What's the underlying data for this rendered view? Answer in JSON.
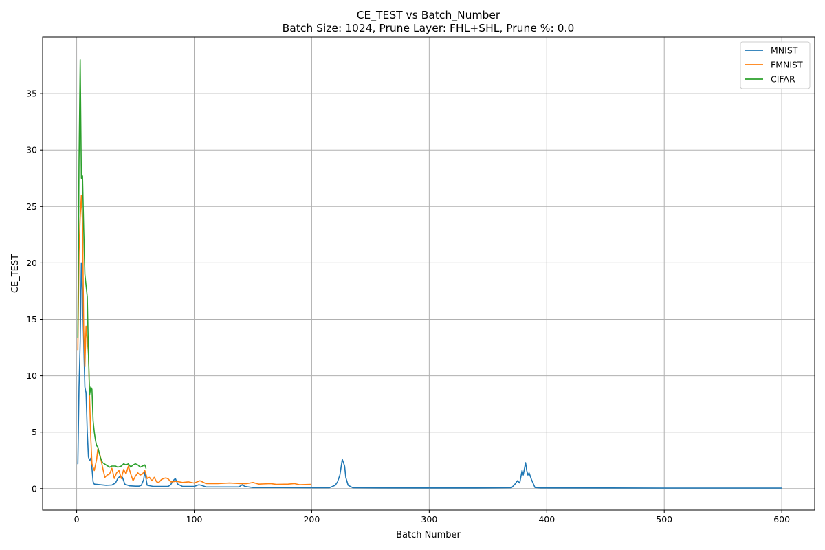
{
  "chart_data": {
    "type": "line",
    "title": "CE_TEST vs Batch_Number",
    "subtitle": "Batch Size: 1024, Prune Layer: FHL+SHL, Prune %: 0.0",
    "xlabel": "Batch Number",
    "ylabel": "CE_TEST",
    "xlim": [
      -29,
      628
    ],
    "ylim": [
      -1.9,
      40
    ],
    "xticks": [
      0,
      100,
      200,
      300,
      400,
      500,
      600
    ],
    "yticks": [
      0,
      5,
      10,
      15,
      20,
      25,
      30,
      35
    ],
    "grid": true,
    "legend_position": "top-right",
    "series": [
      {
        "name": "MNIST",
        "color": "#1f77b4",
        "points": [
          [
            1,
            2.2
          ],
          [
            2,
            9
          ],
          [
            3,
            13
          ],
          [
            4,
            20
          ],
          [
            5,
            17
          ],
          [
            6,
            13
          ],
          [
            7,
            9
          ],
          [
            8,
            8.5
          ],
          [
            9,
            5
          ],
          [
            10,
            2.8
          ],
          [
            11,
            2.5
          ],
          [
            12,
            2.7
          ],
          [
            13,
            1.8
          ],
          [
            14,
            0.6
          ],
          [
            15,
            0.4
          ],
          [
            20,
            0.35
          ],
          [
            25,
            0.3
          ],
          [
            30,
            0.32
          ],
          [
            33,
            0.5
          ],
          [
            35,
            0.9
          ],
          [
            37,
            1.1
          ],
          [
            39,
            1.0
          ],
          [
            41,
            0.4
          ],
          [
            45,
            0.25
          ],
          [
            50,
            0.22
          ],
          [
            53,
            0.22
          ],
          [
            55,
            0.3
          ],
          [
            57,
            0.8
          ],
          [
            58,
            1.5
          ],
          [
            59,
            0.9
          ],
          [
            60,
            0.3
          ],
          [
            65,
            0.2
          ],
          [
            70,
            0.2
          ],
          [
            78,
            0.2
          ],
          [
            80,
            0.35
          ],
          [
            82,
            0.7
          ],
          [
            84,
            0.9
          ],
          [
            86,
            0.4
          ],
          [
            90,
            0.2
          ],
          [
            100,
            0.2
          ],
          [
            104,
            0.35
          ],
          [
            106,
            0.3
          ],
          [
            110,
            0.15
          ],
          [
            120,
            0.15
          ],
          [
            130,
            0.15
          ],
          [
            138,
            0.15
          ],
          [
            141,
            0.35
          ],
          [
            143,
            0.2
          ],
          [
            150,
            0.1
          ],
          [
            175,
            0.1
          ],
          [
            200,
            0.08
          ],
          [
            215,
            0.08
          ],
          [
            220,
            0.3
          ],
          [
            222,
            0.6
          ],
          [
            224,
            1.2
          ],
          [
            226,
            2.6
          ],
          [
            228,
            2.0
          ],
          [
            229,
            1.0
          ],
          [
            231,
            0.3
          ],
          [
            235,
            0.08
          ],
          [
            260,
            0.07
          ],
          [
            300,
            0.06
          ],
          [
            340,
            0.06
          ],
          [
            370,
            0.08
          ],
          [
            373,
            0.4
          ],
          [
            375,
            0.7
          ],
          [
            377,
            0.5
          ],
          [
            379,
            1.6
          ],
          [
            380,
            1.2
          ],
          [
            382,
            2.3
          ],
          [
            383,
            1.6
          ],
          [
            384,
            1.2
          ],
          [
            385,
            1.4
          ],
          [
            387,
            0.8
          ],
          [
            390,
            0.1
          ],
          [
            395,
            0.07
          ],
          [
            450,
            0.06
          ],
          [
            500,
            0.05
          ],
          [
            550,
            0.05
          ],
          [
            600,
            0.05
          ]
        ]
      },
      {
        "name": "FMNIST",
        "color": "#ff7f0e",
        "points": [
          [
            1,
            12.3
          ],
          [
            2,
            21
          ],
          [
            3,
            24
          ],
          [
            4,
            26
          ],
          [
            5,
            23.5
          ],
          [
            6,
            14
          ],
          [
            7,
            10.8
          ],
          [
            8,
            14.4
          ],
          [
            9,
            13.2
          ],
          [
            10,
            12
          ],
          [
            11,
            8
          ],
          [
            12,
            4.5
          ],
          [
            13,
            2.2
          ],
          [
            15,
            1.6
          ],
          [
            17,
            2.6
          ],
          [
            18,
            3.5
          ],
          [
            20,
            2.9
          ],
          [
            22,
            1.9
          ],
          [
            24,
            1.0
          ],
          [
            26,
            1.2
          ],
          [
            28,
            1.3
          ],
          [
            30,
            1.8
          ],
          [
            32,
            0.9
          ],
          [
            34,
            1.4
          ],
          [
            36,
            1.6
          ],
          [
            38,
            0.9
          ],
          [
            40,
            1.7
          ],
          [
            42,
            1.3
          ],
          [
            44,
            2.0
          ],
          [
            46,
            1.3
          ],
          [
            48,
            0.7
          ],
          [
            50,
            1.1
          ],
          [
            52,
            1.4
          ],
          [
            54,
            1.2
          ],
          [
            56,
            1.3
          ],
          [
            58,
            1.6
          ],
          [
            60,
            0.9
          ],
          [
            62,
            1.0
          ],
          [
            64,
            0.7
          ],
          [
            66,
            1.0
          ],
          [
            68,
            0.6
          ],
          [
            70,
            0.55
          ],
          [
            72,
            0.8
          ],
          [
            74,
            0.9
          ],
          [
            76,
            0.95
          ],
          [
            78,
            0.85
          ],
          [
            80,
            0.6
          ],
          [
            85,
            0.65
          ],
          [
            90,
            0.55
          ],
          [
            95,
            0.6
          ],
          [
            100,
            0.5
          ],
          [
            105,
            0.7
          ],
          [
            110,
            0.45
          ],
          [
            120,
            0.45
          ],
          [
            130,
            0.5
          ],
          [
            140,
            0.45
          ],
          [
            145,
            0.45
          ],
          [
            150,
            0.55
          ],
          [
            155,
            0.4
          ],
          [
            165,
            0.45
          ],
          [
            170,
            0.38
          ],
          [
            180,
            0.4
          ],
          [
            185,
            0.45
          ],
          [
            190,
            0.35
          ],
          [
            199,
            0.38
          ]
        ]
      },
      {
        "name": "CIFAR",
        "color": "#2ca02c",
        "points": [
          [
            1,
            13.4
          ],
          [
            2,
            29
          ],
          [
            3,
            38
          ],
          [
            4,
            27.5
          ],
          [
            5,
            27.7
          ],
          [
            6,
            23
          ],
          [
            7,
            19
          ],
          [
            8,
            18
          ],
          [
            9,
            17
          ],
          [
            10,
            12
          ],
          [
            11,
            8.3
          ],
          [
            12,
            9.0
          ],
          [
            13,
            8.8
          ],
          [
            14,
            6
          ],
          [
            15,
            5
          ],
          [
            16,
            4.3
          ],
          [
            17,
            3.8
          ],
          [
            18,
            3.7
          ],
          [
            20,
            2.8
          ],
          [
            22,
            2.3
          ],
          [
            25,
            2.1
          ],
          [
            28,
            1.9
          ],
          [
            30,
            2.0
          ],
          [
            33,
            2.0
          ],
          [
            35,
            1.9
          ],
          [
            38,
            2.0
          ],
          [
            40,
            2.2
          ],
          [
            42,
            2.1
          ],
          [
            44,
            2.2
          ],
          [
            46,
            1.9
          ],
          [
            48,
            2.1
          ],
          [
            50,
            2.2
          ],
          [
            52,
            2.1
          ],
          [
            54,
            1.9
          ],
          [
            56,
            2.0
          ],
          [
            58,
            2.1
          ],
          [
            59,
            1.8
          ]
        ]
      }
    ]
  }
}
